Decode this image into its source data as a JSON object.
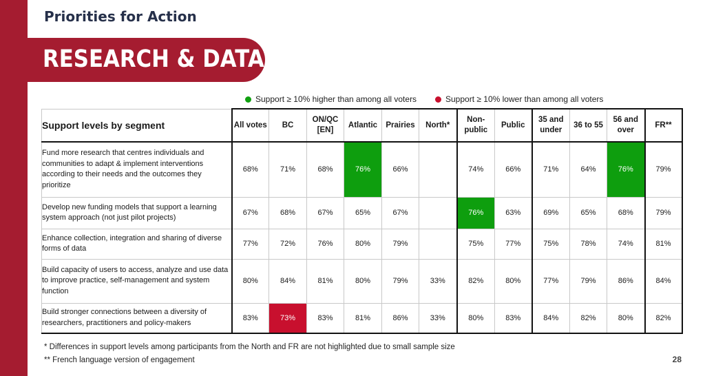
{
  "header": {
    "kicker": "Priorities for Action",
    "title": "RESEARCH & DATA"
  },
  "legend": {
    "green": {
      "label": "Support ≥ 10% higher than among all voters",
      "color": "#10a010"
    },
    "red": {
      "label": "Support ≥ 10% lower than among all voters",
      "color": "#c8102e"
    }
  },
  "table": {
    "title": "Support levels by segment",
    "columns": [
      "All votes",
      "BC",
      "ON/QC [EN]",
      "Atlantic",
      "Prairies",
      "North*",
      "Non-public",
      "Public",
      "35 and under",
      "36 to 55",
      "56 and over",
      "FR**"
    ],
    "rows": [
      {
        "label": "Fund more research that centres individuals and communities to adapt & implement interventions according to their needs and the outcomes they prioritize",
        "values": [
          "68%",
          "71%",
          "68%",
          "76%",
          "66%",
          "",
          "74%",
          "66%",
          "71%",
          "64%",
          "76%",
          "79%"
        ],
        "highlight": [
          "",
          "",
          "",
          "green",
          "",
          "",
          "",
          "",
          "",
          "",
          "green",
          ""
        ]
      },
      {
        "label": "Develop new funding models that support a learning system approach (not just pilot projects)",
        "values": [
          "67%",
          "68%",
          "67%",
          "65%",
          "67%",
          "",
          "76%",
          "63%",
          "69%",
          "65%",
          "68%",
          "79%"
        ],
        "highlight": [
          "",
          "",
          "",
          "",
          "",
          "",
          "green",
          "",
          "",
          "",
          "",
          ""
        ]
      },
      {
        "label": "Enhance collection, integration and sharing of diverse forms of data",
        "values": [
          "77%",
          "72%",
          "76%",
          "80%",
          "79%",
          "",
          "75%",
          "77%",
          "75%",
          "78%",
          "74%",
          "81%"
        ],
        "highlight": [
          "",
          "",
          "",
          "",
          "",
          "",
          "",
          "",
          "",
          "",
          "",
          ""
        ]
      },
      {
        "label": "Build capacity of users to access, analyze and use data to improve practice, self-management and system function",
        "values": [
          "80%",
          "84%",
          "81%",
          "80%",
          "79%",
          "33%",
          "82%",
          "80%",
          "77%",
          "79%",
          "86%",
          "84%"
        ],
        "highlight": [
          "",
          "",
          "",
          "",
          "",
          "",
          "",
          "",
          "",
          "",
          "",
          ""
        ]
      },
      {
        "label": "Build stronger connections between a diversity of researchers, practitioners and policy-makers",
        "values": [
          "83%",
          "73%",
          "83%",
          "81%",
          "86%",
          "33%",
          "80%",
          "83%",
          "84%",
          "82%",
          "80%",
          "82%"
        ],
        "highlight": [
          "",
          "red",
          "",
          "",
          "",
          "",
          "",
          "",
          "",
          "",
          "",
          ""
        ]
      }
    ]
  },
  "footnotes": [
    "* Differences in support levels among participants from the North and FR are not highlighted due to small sample size",
    "** French language version of engagement"
  ],
  "page_number": "28"
}
